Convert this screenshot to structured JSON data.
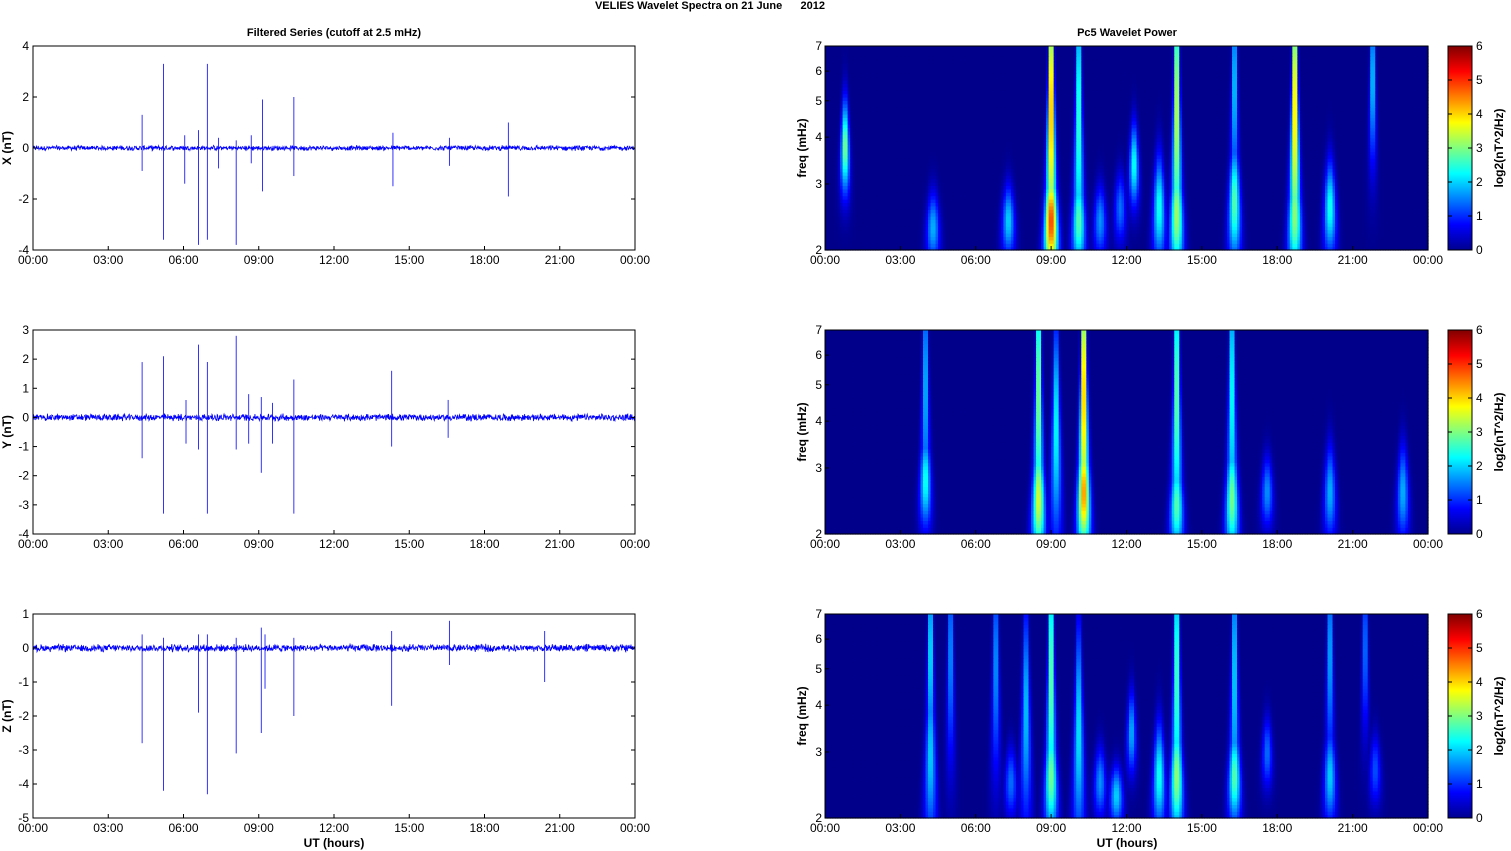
{
  "figure": {
    "title": "VELIES Wavelet Spectra on 21 June      2012",
    "left_title": "Filtered Series (cutoff at 2.5 mHz)",
    "right_title": "Pc5 Wavelet Power",
    "xlabel": "UT (hours)",
    "colorbar_label": "log2(nT^2/Hz)"
  },
  "chart_data": [
    {
      "type": "line",
      "component": "X",
      "ylabel": "X (nT)",
      "xlim": [
        0,
        24
      ],
      "ylim": [
        -4,
        4
      ],
      "yticks": [
        -4,
        -2,
        0,
        2,
        4
      ],
      "xticks": [
        "00:00",
        "03:00",
        "06:00",
        "09:00",
        "12:00",
        "15:00",
        "18:00",
        "21:00",
        "00:00"
      ],
      "noise_level": 0.08,
      "spikes": [
        [
          4.35,
          1.3,
          -0.9
        ],
        [
          5.2,
          3.3,
          -3.6
        ],
        [
          6.05,
          0.5,
          -1.4
        ],
        [
          6.6,
          0.7,
          -3.8
        ],
        [
          6.95,
          3.3,
          -3.6
        ],
        [
          7.4,
          0.4,
          -0.8
        ],
        [
          8.1,
          0.3,
          -3.8
        ],
        [
          8.7,
          0.5,
          -0.6
        ],
        [
          9.15,
          1.9,
          -1.7
        ],
        [
          10.4,
          2.0,
          -1.1
        ],
        [
          14.35,
          0.6,
          -1.5
        ],
        [
          16.6,
          0.4,
          -0.7
        ],
        [
          18.95,
          1.0,
          -1.9
        ]
      ]
    },
    {
      "type": "line",
      "component": "Y",
      "ylabel": "Y (nT)",
      "xlim": [
        0,
        24
      ],
      "ylim": [
        -4,
        3
      ],
      "yticks": [
        -4,
        -3,
        -2,
        -1,
        0,
        1,
        2,
        3
      ],
      "xticks": [
        "00:00",
        "03:00",
        "06:00",
        "09:00",
        "12:00",
        "15:00",
        "18:00",
        "21:00",
        "00:00"
      ],
      "noise_level": 0.1,
      "spikes": [
        [
          4.35,
          1.9,
          -1.4
        ],
        [
          5.2,
          2.1,
          -3.3
        ],
        [
          6.1,
          0.6,
          -0.9
        ],
        [
          6.6,
          2.5,
          -1.1
        ],
        [
          6.95,
          1.9,
          -3.3
        ],
        [
          8.1,
          2.8,
          -1.1
        ],
        [
          8.6,
          0.8,
          -0.9
        ],
        [
          9.1,
          0.7,
          -1.9
        ],
        [
          9.55,
          0.5,
          -0.9
        ],
        [
          10.4,
          1.3,
          -3.3
        ],
        [
          14.3,
          1.6,
          -1.0
        ],
        [
          16.55,
          0.6,
          -0.7
        ]
      ]
    },
    {
      "type": "line",
      "component": "Z",
      "ylabel": "Z (nT)",
      "xlim": [
        0,
        24
      ],
      "ylim": [
        -5,
        1
      ],
      "yticks": [
        -5,
        -4,
        -3,
        -2,
        -1,
        0,
        1
      ],
      "xticks": [
        "00:00",
        "03:00",
        "06:00",
        "09:00",
        "12:00",
        "15:00",
        "18:00",
        "21:00",
        "00:00"
      ],
      "noise_level": 0.09,
      "spikes": [
        [
          4.35,
          0.4,
          -2.8
        ],
        [
          5.2,
          0.3,
          -4.2
        ],
        [
          6.6,
          0.4,
          -1.9
        ],
        [
          6.95,
          0.4,
          -4.3
        ],
        [
          8.1,
          0.3,
          -3.1
        ],
        [
          9.1,
          0.6,
          -2.5
        ],
        [
          9.25,
          0.4,
          -1.2
        ],
        [
          10.4,
          0.3,
          -2.0
        ],
        [
          14.3,
          0.5,
          -1.7
        ],
        [
          16.6,
          0.8,
          -0.5
        ],
        [
          20.4,
          0.5,
          -1.0
        ]
      ]
    },
    {
      "type": "heatmap",
      "component": "X",
      "ylabel": "freq (mHz)",
      "xlim": [
        0,
        24
      ],
      "ylim": [
        2,
        7
      ],
      "yscale": "log",
      "yticks": [
        2,
        3,
        4,
        5,
        6,
        7
      ],
      "xticks": [
        "00:00",
        "03:00",
        "06:00",
        "09:00",
        "12:00",
        "15:00",
        "18:00",
        "21:00",
        "00:00"
      ],
      "colormap": "jet",
      "clim": [
        0,
        6
      ],
      "cticks": [
        0,
        1,
        2,
        3,
        4,
        5,
        6
      ],
      "peaks": [
        [
          0.8,
          3.8,
          0.8,
          3.1
        ],
        [
          4.3,
          2.3,
          0.6,
          1.8
        ],
        [
          7.3,
          2.4,
          0.6,
          2.0
        ],
        [
          9.0,
          2.4,
          0.9,
          5.0
        ],
        [
          9.0,
          5.5,
          3.0,
          4.8
        ],
        [
          10.1,
          2.4,
          0.8,
          2.8
        ],
        [
          10.1,
          5.0,
          3.0,
          2.8
        ],
        [
          10.95,
          2.4,
          0.6,
          1.6
        ],
        [
          11.75,
          2.6,
          0.6,
          1.4
        ],
        [
          12.3,
          3.4,
          0.7,
          2.4
        ],
        [
          13.3,
          2.6,
          0.9,
          2.4
        ],
        [
          14.0,
          2.5,
          1.0,
          3.3
        ],
        [
          14.0,
          5.5,
          3.0,
          3.8
        ],
        [
          16.3,
          2.7,
          1.0,
          2.8
        ],
        [
          16.3,
          6.0,
          2.0,
          2.2
        ],
        [
          18.7,
          2.5,
          1.0,
          3.2
        ],
        [
          18.7,
          5.5,
          3.0,
          4.5
        ],
        [
          20.1,
          2.6,
          0.8,
          2.4
        ],
        [
          21.8,
          6.0,
          1.5,
          2.2
        ]
      ]
    },
    {
      "type": "heatmap",
      "component": "Y",
      "ylabel": "freq (mHz)",
      "xlim": [
        0,
        24
      ],
      "ylim": [
        2,
        7
      ],
      "yscale": "log",
      "yticks": [
        2,
        3,
        4,
        5,
        6,
        7
      ],
      "xticks": [
        "00:00",
        "03:00",
        "06:00",
        "09:00",
        "12:00",
        "15:00",
        "18:00",
        "21:00",
        "00:00"
      ],
      "colormap": "jet",
      "clim": [
        0,
        6
      ],
      "cticks": [
        0,
        1,
        2,
        3,
        4,
        5,
        6
      ],
      "peaks": [
        [
          4.0,
          2.8,
          0.8,
          2.4
        ],
        [
          4.0,
          5.5,
          2.5,
          2.0
        ],
        [
          8.5,
          2.5,
          1.0,
          3.6
        ],
        [
          8.5,
          5.5,
          3.0,
          3.4
        ],
        [
          9.2,
          4.0,
          2.0,
          2.4
        ],
        [
          10.3,
          2.6,
          1.0,
          4.5
        ],
        [
          10.3,
          5.5,
          3.0,
          4.7
        ],
        [
          14.0,
          2.4,
          0.8,
          2.8
        ],
        [
          14.0,
          5.5,
          3.0,
          3.2
        ],
        [
          16.2,
          2.5,
          1.0,
          3.0
        ],
        [
          16.2,
          5.5,
          3.0,
          2.6
        ],
        [
          17.6,
          2.6,
          0.6,
          1.6
        ],
        [
          20.1,
          2.6,
          0.8,
          1.8
        ],
        [
          23.0,
          2.6,
          0.8,
          1.8
        ]
      ]
    },
    {
      "type": "heatmap",
      "component": "Z",
      "ylabel": "freq (mHz)",
      "xlim": [
        0,
        24
      ],
      "ylim": [
        2,
        7
      ],
      "yscale": "log",
      "yticks": [
        2,
        3,
        4,
        5,
        6,
        7
      ],
      "xticks": [
        "00:00",
        "03:00",
        "06:00",
        "09:00",
        "12:00",
        "15:00",
        "18:00",
        "21:00",
        "00:00"
      ],
      "colormap": "jet",
      "clim": [
        0,
        6
      ],
      "cticks": [
        0,
        1,
        2,
        3,
        4,
        5,
        6
      ],
      "peaks": [
        [
          4.2,
          3.0,
          1.5,
          2.0
        ],
        [
          4.2,
          6.0,
          2.0,
          2.4
        ],
        [
          5.0,
          6.0,
          2.0,
          1.8
        ],
        [
          6.8,
          5.5,
          2.0,
          1.8
        ],
        [
          7.4,
          2.5,
          0.6,
          1.4
        ],
        [
          8.0,
          4.0,
          2.0,
          2.0
        ],
        [
          9.0,
          2.6,
          1.0,
          3.0
        ],
        [
          9.0,
          5.5,
          3.0,
          3.2
        ],
        [
          10.1,
          3.5,
          2.0,
          2.2
        ],
        [
          10.95,
          2.5,
          0.6,
          1.6
        ],
        [
          11.6,
          2.3,
          0.5,
          2.0
        ],
        [
          12.2,
          3.4,
          0.7,
          1.8
        ],
        [
          13.3,
          2.6,
          0.9,
          2.4
        ],
        [
          14.0,
          2.6,
          1.0,
          3.2
        ],
        [
          14.0,
          5.5,
          3.0,
          3.0
        ],
        [
          16.3,
          2.6,
          0.8,
          2.8
        ],
        [
          16.3,
          5.5,
          3.0,
          2.2
        ],
        [
          17.6,
          3.0,
          0.6,
          1.4
        ],
        [
          20.1,
          2.6,
          0.8,
          2.0
        ],
        [
          20.1,
          6.0,
          2.0,
          2.0
        ],
        [
          21.5,
          6.0,
          1.5,
          1.6
        ],
        [
          21.9,
          2.7,
          0.6,
          1.2
        ]
      ]
    }
  ]
}
